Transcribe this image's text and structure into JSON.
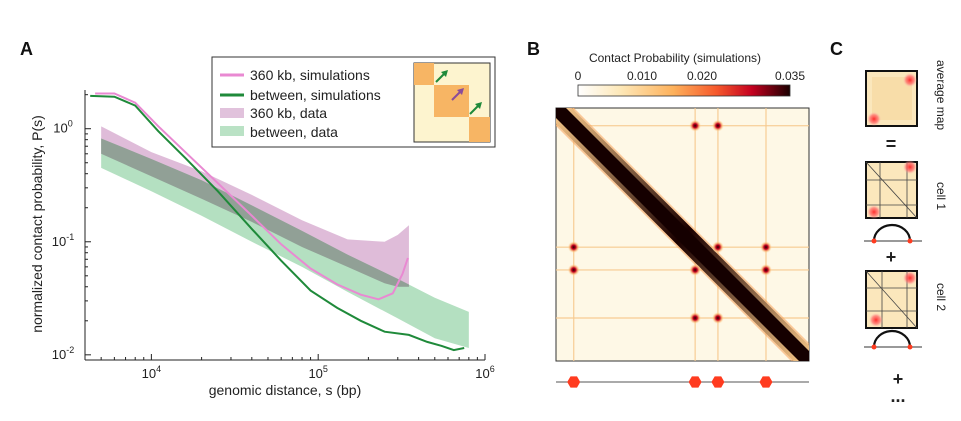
{
  "panels": {
    "a": "A",
    "b": "B",
    "c": "C"
  },
  "colors": {
    "sim_360": "#e989d2",
    "sim_between": "#1f8a3a",
    "data_360": "#c98fbf",
    "data_between": "#8ccf9f",
    "tad": "#f7b564",
    "tad_light": "#fdf4cf",
    "ctcf_marker": "#ff3b1f"
  },
  "chart_data": {
    "type": "line",
    "xlabel": "genomic distance, s (bp)",
    "ylabel": "normalized contact probability, P(s)",
    "xscale": "log",
    "yscale": "log",
    "xlim": [
      4000,
      1000000
    ],
    "ylim": [
      0.009,
      2.2
    ],
    "x_ticks": [
      {
        "base": "10",
        "exp": "4",
        "value": 10000
      },
      {
        "base": "10",
        "exp": "5",
        "value": 100000
      },
      {
        "base": "10",
        "exp": "6",
        "value": 1000000
      }
    ],
    "y_ticks": [
      {
        "base": "10",
        "exp": "0",
        "value": 1
      },
      {
        "base": "10",
        "exp": "-1",
        "value": 0.1
      },
      {
        "base": "10",
        "exp": "-2",
        "value": 0.01
      }
    ],
    "legend_position": "top-right",
    "series": [
      {
        "name": "360 kb, simulations",
        "kind": "line",
        "x": [
          4600,
          6000,
          8000,
          11000,
          16000,
          25000,
          40000,
          60000,
          90000,
          130000,
          180000,
          230000,
          280000,
          320000,
          345000
        ],
        "y": [
          2.05,
          2.05,
          1.7,
          1.05,
          0.62,
          0.33,
          0.17,
          0.095,
          0.058,
          0.042,
          0.034,
          0.031,
          0.035,
          0.052,
          0.072
        ]
      },
      {
        "name": "between, simulations",
        "kind": "line",
        "x": [
          4300,
          6000,
          8000,
          11000,
          16000,
          25000,
          40000,
          60000,
          90000,
          130000,
          180000,
          250000,
          350000,
          450000,
          550000,
          650000,
          750000
        ],
        "y": [
          1.95,
          1.92,
          1.6,
          0.95,
          0.55,
          0.28,
          0.13,
          0.068,
          0.037,
          0.026,
          0.02,
          0.016,
          0.015,
          0.013,
          0.012,
          0.011,
          0.0115
        ]
      },
      {
        "name": "360 kb, data",
        "kind": "band",
        "x": [
          5000,
          10000,
          20000,
          40000,
          80000,
          150000,
          250000,
          300000,
          350000
        ],
        "lower": [
          0.6,
          0.38,
          0.24,
          0.15,
          0.09,
          0.06,
          0.043,
          0.04,
          0.04
        ],
        "upper": [
          1.05,
          0.62,
          0.42,
          0.26,
          0.155,
          0.105,
          0.1,
          0.115,
          0.14
        ]
      },
      {
        "name": "between, data",
        "kind": "band",
        "x": [
          5000,
          10000,
          20000,
          40000,
          80000,
          150000,
          300000,
          500000,
          800000
        ],
        "lower": [
          0.45,
          0.28,
          0.17,
          0.1,
          0.06,
          0.036,
          0.021,
          0.014,
          0.0115
        ],
        "upper": [
          0.82,
          0.54,
          0.35,
          0.21,
          0.125,
          0.077,
          0.047,
          0.032,
          0.024
        ]
      }
    ]
  },
  "heatmap": {
    "colorbar_title": "Contact Probability (simulations)",
    "colorbar_ticks": [
      "0",
      "0.010",
      "0.020",
      "0.035"
    ],
    "colorbar_range": [
      0,
      0.035
    ],
    "ctcf_positions": [
      0.07,
      0.55,
      0.64,
      0.83
    ],
    "bright_spots": [
      [
        0.55,
        0.07
      ],
      [
        0.07,
        0.55
      ],
      [
        0.64,
        0.55
      ],
      [
        0.55,
        0.64
      ],
      [
        0.83,
        0.64
      ],
      [
        0.64,
        0.83
      ],
      [
        0.64,
        0.07
      ],
      [
        0.07,
        0.64
      ],
      [
        0.83,
        0.55
      ],
      [
        0.55,
        0.83
      ]
    ]
  },
  "panel_c": {
    "labels": [
      "average map",
      "cell 1",
      "cell 2"
    ],
    "equals": "=",
    "plus": "+",
    "ellipsis": "..."
  }
}
